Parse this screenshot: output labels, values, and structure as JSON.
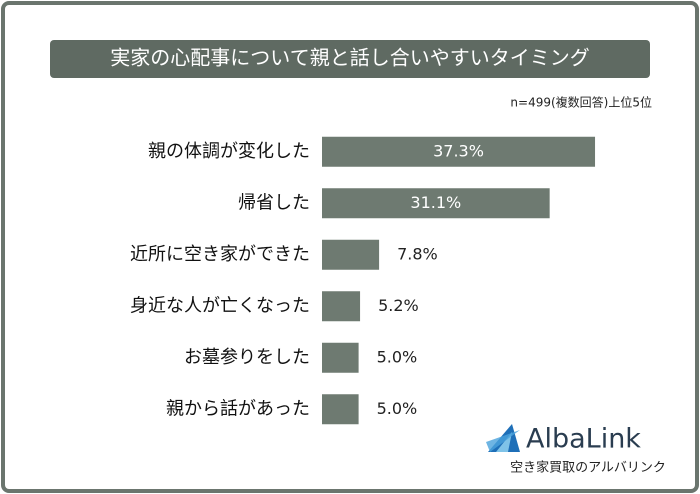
{
  "chart_data": {
    "type": "bar",
    "orientation": "horizontal",
    "title": "実家の心配事について親と話し合いやすいタイミング",
    "note": "n=499(複数回答)上位5位",
    "categories": [
      "親の体調が変化した",
      "帰省した",
      "近所に空き家ができた",
      "身近な人が亡くなった",
      "お墓参りをした",
      "親から話があった"
    ],
    "values": [
      37.3,
      31.1,
      7.8,
      5.2,
      5.0,
      5.0
    ],
    "value_labels": [
      "37.3%",
      "31.1%",
      "7.8%",
      "5.2%",
      "5.0%",
      "5.0%"
    ],
    "color": "#6e7a71"
  },
  "logo": {
    "name": "AlbaLink",
    "tagline": "空き家買取のアルバリンク"
  }
}
